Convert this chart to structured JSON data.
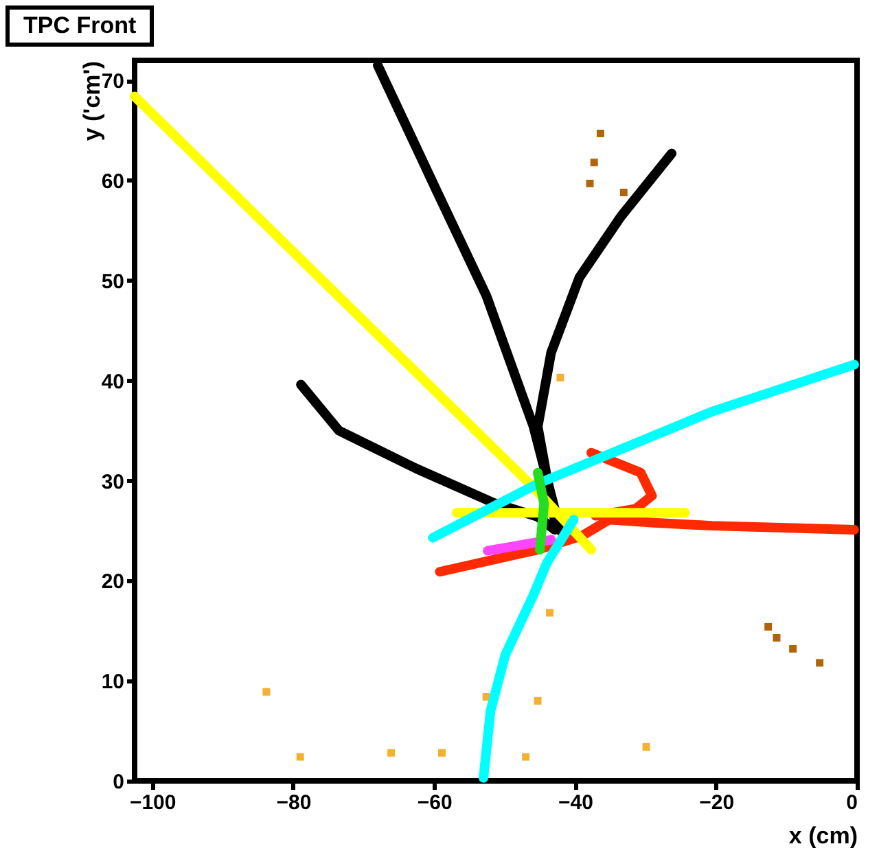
{
  "chart_data": {
    "type": "line",
    "title": "TPC Front",
    "xlabel": "x (cm)",
    "ylabel": "y ('cm')",
    "xlim": [
      -102.5,
      0
    ],
    "ylim": [
      0,
      72
    ],
    "xticks": [
      -100,
      -80,
      -60,
      -40,
      -20,
      0
    ],
    "yticks": [
      0,
      10,
      20,
      30,
      40,
      50,
      60,
      70
    ],
    "series": [
      {
        "type": "scatter",
        "marker": "square",
        "color": "#f5b030",
        "x": [
          -42.1,
          -45.3,
          -52.6,
          -83.8,
          -66.1,
          -47.0,
          -29.9,
          -79.0,
          -58.9,
          -43.6
        ],
        "values": [
          40.3,
          8.0,
          8.4,
          8.9,
          2.8,
          2.4,
          3.4,
          2.4,
          2.8,
          16.8
        ]
      },
      {
        "type": "scatter",
        "marker": "square",
        "color": "#b0650a",
        "x": [
          -36.4,
          -37.3,
          -37.9,
          -33.1,
          -12.6,
          -11.4,
          -9.1,
          -5.3
        ],
        "values": [
          64.7,
          61.8,
          59.7,
          58.8,
          15.4,
          14.3,
          13.2,
          11.8
        ]
      },
      {
        "color": "#ff2a00",
        "x": [
          -59.2,
          -45.3,
          -39.0,
          -35.2,
          -28.8,
          -20.6,
          -0.4
        ],
        "values": [
          20.9,
          23.1,
          24.5,
          26.1,
          25.8,
          25.5,
          25.1
        ]
      },
      {
        "color": "#ff2a00",
        "x": [
          -37.1,
          -31.4,
          -29.1,
          -30.7,
          -37.7
        ],
        "values": [
          26.5,
          27.2,
          28.5,
          30.8,
          32.8
        ]
      },
      {
        "color": "#ff44ff",
        "x": [
          -52.4,
          -43.4
        ],
        "values": [
          23.0,
          24.1
        ]
      },
      {
        "color": "#000000",
        "x": [
          -68.0,
          -59.8,
          -52.6,
          -45.9,
          -42.1
        ],
        "values": [
          71.5,
          59.2,
          48.5,
          35.4,
          25.0
        ]
      },
      {
        "color": "#000000",
        "x": [
          -42.9,
          -45.3,
          -43.4,
          -39.4,
          -33.5,
          -26.3
        ],
        "values": [
          26.1,
          35.4,
          42.8,
          50.3,
          56.4,
          62.7
        ]
      },
      {
        "color": "#000000",
        "x": [
          -78.9,
          -73.5,
          -62.5,
          -51.6,
          -45.3,
          -42.9
        ],
        "values": [
          39.6,
          35.0,
          31.2,
          27.8,
          26.4,
          25.1
        ]
      },
      {
        "color": "#ffff00",
        "x": [
          -102.5,
          -45.7,
          -37.7
        ],
        "values": [
          68.4,
          29.2,
          23.1
        ]
      },
      {
        "color": "#ffff00",
        "x": [
          -56.8,
          -24.4
        ],
        "values": [
          26.8,
          26.8
        ]
      },
      {
        "color": "#00ffff",
        "x": [
          -60.2,
          -45.3,
          -20.6,
          -0.4
        ],
        "values": [
          24.3,
          29.7,
          36.9,
          41.6
        ]
      },
      {
        "color": "#00ffff",
        "x": [
          -53.0,
          -52.0,
          -49.9,
          -45.9,
          -44.0,
          -40.2
        ],
        "values": [
          0.3,
          7.0,
          12.6,
          18.6,
          21.8,
          26.1
        ]
      },
      {
        "color": "#22dd22",
        "x": [
          -45.3,
          -44.4,
          -45.0
        ],
        "values": [
          30.8,
          27.7,
          23.1
        ]
      }
    ]
  }
}
